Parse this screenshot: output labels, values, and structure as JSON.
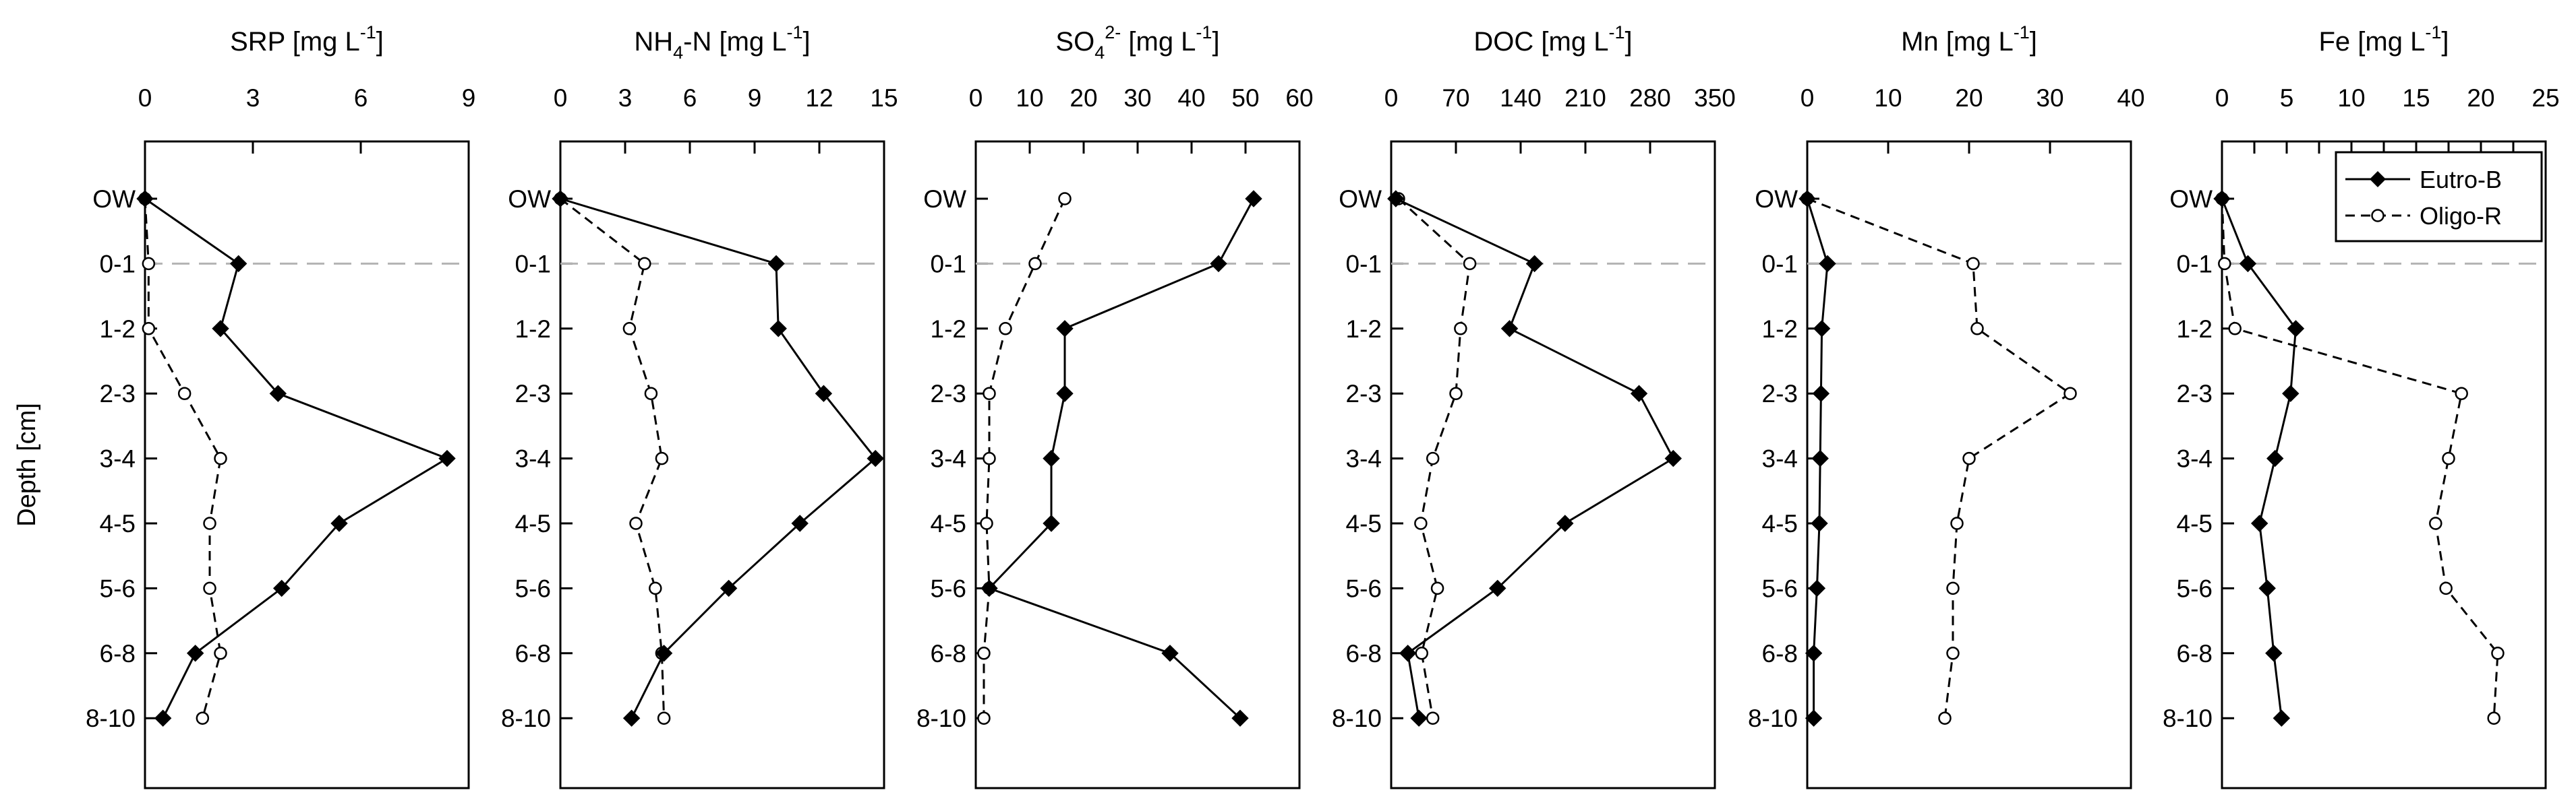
{
  "chart_data": {
    "type": "line",
    "ylabel": "Depth [cm]",
    "categories": [
      "OW",
      "0-1",
      "1-2",
      "2-3",
      "3-4",
      "4-5",
      "5-6",
      "6-8",
      "8-10"
    ],
    "reference_line": {
      "at_category": "0-1",
      "style": "dashed",
      "color": "#b3b3b3"
    },
    "legend": {
      "position": "top-right",
      "entries": [
        {
          "name": "Eutro-B",
          "marker": "filled-diamond",
          "line": "solid"
        },
        {
          "name": "Oligo-R",
          "marker": "open-circle",
          "line": "dashed"
        }
      ]
    },
    "panels": [
      {
        "title": {
          "main": "SRP [mg L",
          "sup": "-1",
          "post": "]"
        },
        "xlim": [
          0,
          9
        ],
        "xticks": [
          0,
          3,
          6,
          9
        ],
        "series": [
          {
            "name": "Eutro-B",
            "values": [
              0,
              2.6,
              2.1,
              3.7,
              8.4,
              5.4,
              3.8,
              1.4,
              0.5
            ]
          },
          {
            "name": "Oligo-R",
            "values": [
              0,
              0.1,
              0.1,
              1.1,
              2.1,
              1.8,
              1.8,
              2.1,
              1.6
            ]
          }
        ]
      },
      {
        "title": {
          "main": "NH",
          "sub": "4",
          "mid": "-N [mg L",
          "sup": "-1",
          "post": "]"
        },
        "xlim": [
          0,
          15
        ],
        "xticks": [
          0,
          3,
          6,
          9,
          12,
          15
        ],
        "series": [
          {
            "name": "Eutro-B",
            "values": [
              0,
              10,
              10.1,
              12.2,
              14.6,
              11.1,
              7.8,
              4.8,
              3.3
            ]
          },
          {
            "name": "Oligo-R",
            "values": [
              0,
              3.9,
              3.2,
              4.2,
              4.7,
              3.5,
              4.4,
              4.7,
              4.8
            ]
          }
        ]
      },
      {
        "title": {
          "main": "SO",
          "sub": "4",
          "sup": "2-",
          "post": " [mg L",
          "sup2": "-1",
          "post2": "]"
        },
        "xlim": [
          0,
          60
        ],
        "xticks": [
          0,
          10,
          20,
          30,
          40,
          50,
          60
        ],
        "series": [
          {
            "name": "Eutro-B",
            "values": [
              51.5,
              45,
              16.5,
              16.5,
              14,
              14,
              2.5,
              36,
              49
            ]
          },
          {
            "name": "Oligo-R",
            "values": [
              16.5,
              11,
              5.5,
              2.5,
              2.5,
              2,
              2.5,
              1.5,
              1.5
            ]
          }
        ]
      },
      {
        "title": {
          "main": "DOC [mg L",
          "sup": "-1",
          "post": "]"
        },
        "xlim": [
          0,
          350
        ],
        "xticks": [
          0,
          70,
          140,
          210,
          280,
          350
        ],
        "series": [
          {
            "name": "Eutro-B",
            "values": [
              5,
              155,
              128,
              268,
              305,
              188,
              115,
              18,
              30
            ]
          },
          {
            "name": "Oligo-R",
            "values": [
              8,
              85,
              75,
              70,
              45,
              32,
              50,
              33,
              45
            ]
          }
        ]
      },
      {
        "title": {
          "main": "Mn [mg L",
          "sup": "-1",
          "post": "]"
        },
        "xlim": [
          0,
          40
        ],
        "xticks": [
          0,
          10,
          20,
          30,
          40
        ],
        "series": [
          {
            "name": "Eutro-B",
            "values": [
              0,
              2.5,
              1.8,
              1.7,
              1.6,
              1.5,
              1.2,
              0.8,
              0.8
            ]
          },
          {
            "name": "Oligo-R",
            "values": [
              0,
              20.5,
              21,
              32.5,
              20,
              18.5,
              18,
              18,
              17
            ]
          }
        ]
      },
      {
        "title": {
          "main": "Fe [mg L",
          "sup": "-1",
          "post": "]"
        },
        "xlim": [
          0,
          25
        ],
        "xticks": [
          0,
          2.5,
          5,
          7.5,
          10,
          12.5,
          15,
          17.5,
          20,
          22.5,
          25
        ],
        "xtick_labels": [
          "0",
          "",
          "5",
          "",
          "10",
          "",
          "15",
          "",
          "20",
          "",
          "25"
        ],
        "series": [
          {
            "name": "Eutro-B",
            "values": [
              0,
              2,
              5.7,
              5.3,
              4.1,
              2.9,
              3.5,
              4,
              4.6
            ]
          },
          {
            "name": "Oligo-R",
            "values": [
              0,
              0.2,
              1,
              18.5,
              17.5,
              16.5,
              17.3,
              21.3,
              21
            ]
          }
        ]
      }
    ]
  }
}
